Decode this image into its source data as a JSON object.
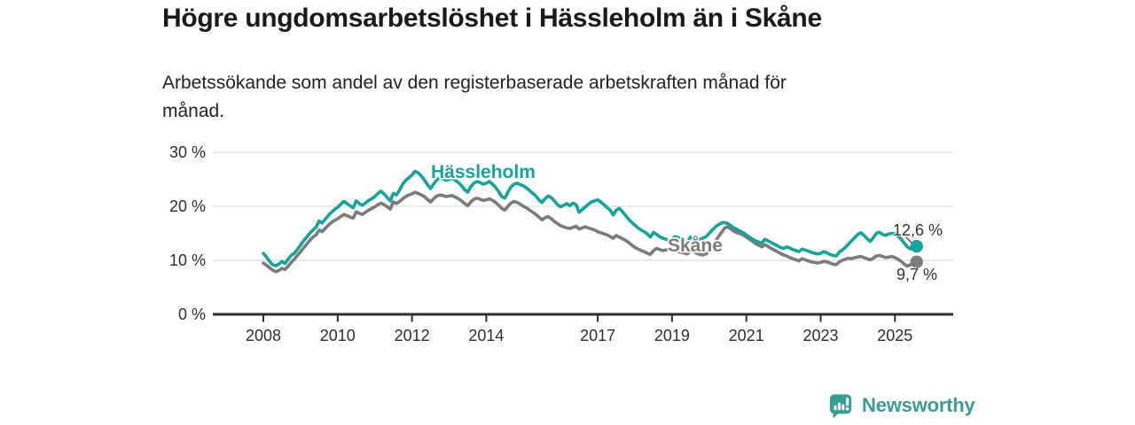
{
  "header": {
    "title": "Högre ungdomsarbetslöshet i Hässleholm än i Skåne",
    "subtitle": "Arbetssökande som andel av den registerbaserade arbetskraften månad för månad.",
    "subtitle_lines": [
      "Arbetssökande som andel av den registerbaserade arbetskraften månad för",
      "månad."
    ]
  },
  "chart_data": {
    "type": "line",
    "title": "Högre ungdomsarbetslöshet i Hässleholm än i Skåne",
    "subtitle": "Arbetssökande som andel av den registerbaserade arbetskraften månad för månad.",
    "unit": "%",
    "x_start": 2008.0,
    "x_interval": "monthly",
    "x_end": 2025.58,
    "ylim": [
      0,
      32
    ],
    "grid": "horizontal",
    "legend": "inline-labels",
    "x_ticks": [
      {
        "value": 2008,
        "label": "2008"
      },
      {
        "value": 2010,
        "label": "2010"
      },
      {
        "value": 2012,
        "label": "2012"
      },
      {
        "value": 2014,
        "label": "2014"
      },
      {
        "value": 2017,
        "label": "2017"
      },
      {
        "value": 2019,
        "label": "2019"
      },
      {
        "value": 2021,
        "label": "2021"
      },
      {
        "value": 2023,
        "label": "2023"
      },
      {
        "value": 2025,
        "label": "2025"
      }
    ],
    "y_ticks": [
      {
        "value": 0,
        "label": "0 %"
      },
      {
        "value": 10,
        "label": "10 %"
      },
      {
        "value": 20,
        "label": "20 %"
      },
      {
        "value": 30,
        "label": "30 %"
      }
    ],
    "series": [
      {
        "name": "Hässleholm",
        "color": "#15a39a",
        "end_label": "12,6 %",
        "last_value": 12.6,
        "values": [
          11.3,
          10.6,
          9.8,
          9.2,
          9.0,
          9.3,
          9.8,
          9.4,
          10.2,
          10.9,
          11.3,
          12.0,
          12.8,
          13.6,
          14.3,
          15.0,
          15.6,
          16.1,
          17.3,
          16.9,
          17.6,
          18.3,
          18.9,
          19.4,
          19.8,
          20.4,
          20.9,
          20.5,
          20.1,
          19.7,
          21.0,
          20.5,
          20.2,
          20.6,
          21.1,
          21.4,
          21.8,
          22.4,
          22.8,
          22.3,
          21.6,
          21.0,
          22.4,
          22.1,
          23.0,
          24.1,
          24.8,
          25.3,
          25.8,
          26.5,
          26.2,
          25.6,
          24.9,
          24.0,
          23.3,
          24.1,
          24.9,
          25.3,
          25.1,
          24.8,
          25.0,
          25.2,
          24.8,
          24.4,
          23.8,
          23.1,
          22.6,
          23.6,
          24.3,
          24.6,
          24.4,
          24.1,
          24.3,
          24.6,
          24.1,
          23.5,
          22.7,
          21.8,
          21.5,
          22.6,
          23.6,
          24.1,
          24.3,
          24.0,
          23.8,
          23.4,
          22.9,
          22.4,
          21.9,
          21.2,
          20.7,
          21.4,
          21.9,
          21.6,
          21.0,
          20.3,
          19.9,
          20.2,
          20.5,
          20.1,
          20.6,
          20.3,
          18.9,
          19.4,
          19.9,
          20.4,
          20.8,
          21.0,
          21.2,
          20.8,
          20.3,
          19.8,
          19.3,
          18.4,
          19.3,
          19.6,
          19.0,
          18.3,
          17.6,
          17.0,
          16.5,
          16.0,
          15.6,
          15.3,
          14.9,
          14.3,
          15.2,
          14.8,
          14.4,
          14.1,
          13.9,
          13.7,
          14.0,
          14.4,
          14.2,
          13.9,
          13.6,
          13.4,
          14.3,
          14.0,
          13.8,
          13.9,
          14.1,
          14.4,
          15.0,
          15.6,
          16.2,
          16.6,
          16.9,
          17.0,
          16.8,
          16.4,
          16.0,
          15.7,
          15.4,
          15.1,
          14.7,
          14.3,
          13.9,
          13.6,
          13.4,
          13.2,
          13.9,
          13.6,
          13.3,
          13.0,
          12.7,
          12.4,
          12.2,
          12.5,
          12.3,
          12.0,
          11.8,
          11.6,
          12.1,
          11.9,
          11.7,
          11.5,
          11.3,
          11.2,
          11.3,
          11.6,
          11.4,
          11.1,
          10.9,
          10.8,
          11.5,
          11.9,
          12.4,
          13.0,
          13.6,
          14.2,
          14.8,
          15.1,
          14.6,
          14.0,
          13.5,
          14.2,
          15.0,
          15.2,
          14.8,
          14.6,
          14.9,
          15.0,
          14.9,
          14.5,
          13.9,
          13.2,
          12.5,
          12.1,
          12.4,
          12.6
        ]
      },
      {
        "name": "Skåne",
        "color": "#7b7b7b",
        "end_label": "9,7 %",
        "last_value": 9.7,
        "values": [
          9.5,
          9.1,
          8.6,
          8.2,
          7.9,
          8.1,
          8.5,
          8.3,
          8.9,
          9.6,
          10.2,
          10.9,
          11.6,
          12.3,
          13.0,
          13.7,
          14.3,
          14.7,
          15.6,
          15.3,
          15.9,
          16.5,
          17.0,
          17.4,
          17.7,
          18.1,
          18.5,
          18.3,
          18.0,
          17.8,
          19.0,
          18.7,
          18.5,
          18.9,
          19.3,
          19.6,
          19.9,
          20.3,
          20.6,
          20.3,
          19.9,
          19.5,
          20.8,
          20.5,
          20.9,
          21.4,
          21.8,
          22.1,
          22.3,
          22.6,
          22.4,
          22.1,
          21.8,
          21.3,
          20.8,
          21.4,
          21.9,
          22.1,
          22.0,
          21.8,
          21.9,
          22.0,
          21.7,
          21.4,
          21.0,
          20.5,
          20.1,
          20.8,
          21.3,
          21.5,
          21.3,
          21.1,
          21.2,
          21.4,
          21.1,
          20.7,
          20.2,
          19.6,
          19.3,
          20.0,
          20.6,
          20.9,
          20.7,
          20.4,
          20.0,
          19.7,
          19.3,
          18.9,
          18.5,
          18.0,
          17.5,
          17.9,
          18.1,
          17.7,
          17.2,
          16.8,
          16.4,
          16.2,
          16.0,
          15.9,
          16.1,
          16.3,
          15.8,
          16.0,
          16.2,
          16.0,
          15.8,
          15.6,
          15.3,
          15.1,
          14.9,
          14.7,
          14.4,
          14.1,
          14.6,
          14.3,
          14.0,
          13.7,
          13.3,
          12.8,
          12.4,
          12.1,
          11.8,
          11.6,
          11.3,
          11.1,
          11.8,
          12.2,
          12.0,
          11.8,
          11.9,
          12.0,
          12.0,
          11.8,
          11.6,
          11.5,
          11.3,
          11.2,
          11.8,
          11.6,
          11.3,
          11.1,
          11.0,
          11.2,
          11.8,
          12.6,
          13.5,
          14.4,
          15.2,
          16.0,
          16.2,
          15.8,
          15.4,
          15.1,
          14.9,
          14.7,
          14.3,
          13.9,
          13.5,
          13.1,
          12.8,
          12.5,
          12.9,
          12.6,
          12.2,
          11.9,
          11.6,
          11.3,
          11.0,
          10.8,
          10.5,
          10.3,
          10.1,
          9.9,
          10.3,
          10.1,
          9.9,
          9.7,
          9.6,
          9.5,
          9.6,
          9.8,
          9.7,
          9.5,
          9.3,
          9.2,
          9.7,
          10.0,
          10.2,
          10.4,
          10.3,
          10.5,
          10.6,
          10.7,
          10.5,
          10.3,
          10.1,
          10.4,
          10.8,
          10.9,
          10.7,
          10.5,
          10.6,
          10.7,
          10.5,
          10.2,
          9.8,
          9.3,
          8.9,
          9.2,
          9.6,
          9.7
        ]
      }
    ]
  },
  "branding": {
    "logo_text": "Newsworthy",
    "logo_icon": "bar-chart-speech-bubble",
    "logo_color": "#3b9c94"
  }
}
